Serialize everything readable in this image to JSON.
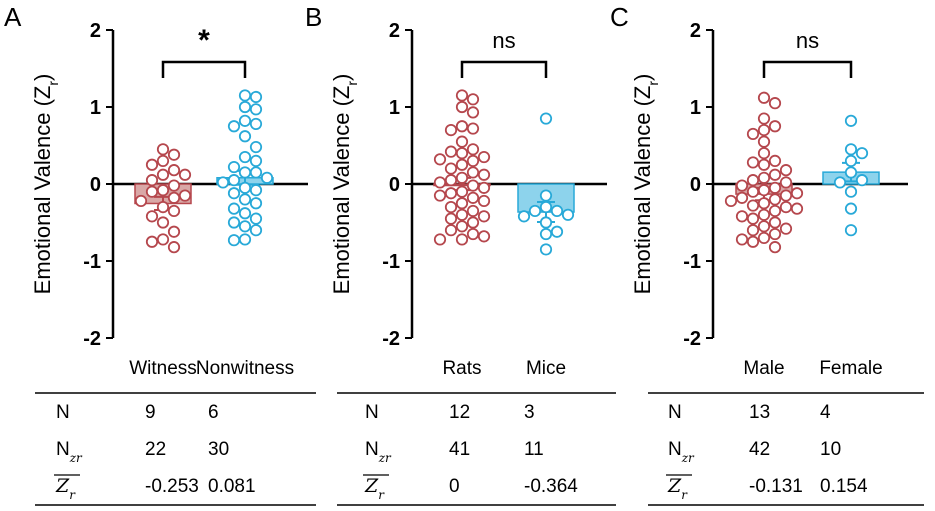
{
  "figure": {
    "panels": [
      "A",
      "B",
      "C"
    ],
    "colors": {
      "red": "#b5474d",
      "redFill": "#d9a8a7",
      "blue": "#28a9d8",
      "blueFill": "#8dd3ec",
      "axis": "#000000"
    }
  },
  "chart_data": [
    {
      "type": "scatter",
      "panel": "A",
      "ylabel": "Emotional Valence (Z",
      "ylabel_sub": "r",
      "ylabel_close": ")",
      "ylim": [
        -2,
        2
      ],
      "yticks": [
        "2",
        "1",
        "0",
        "-1",
        "-2"
      ],
      "categories": [
        "Witness",
        "Nonwitness"
      ],
      "significance": "*",
      "series": [
        {
          "name": "Witness",
          "color": "red",
          "mean": -0.253,
          "sem": 0.085,
          "values": [
            0.45,
            0.38,
            0.3,
            0.25,
            0.18,
            0.12,
            0.12,
            0.05,
            -0.02,
            -0.08,
            -0.1,
            -0.15,
            -0.18,
            -0.22,
            -0.3,
            -0.35,
            -0.42,
            -0.5,
            -0.62,
            -0.72,
            -0.75,
            -0.82
          ]
        },
        {
          "name": "Nonwitness",
          "color": "blue",
          "mean": 0.081,
          "sem": 0.09,
          "values": [
            1.15,
            1.13,
            1.0,
            0.97,
            0.82,
            0.78,
            0.75,
            0.62,
            0.48,
            0.35,
            0.3,
            0.22,
            0.15,
            0.15,
            0.08,
            0.05,
            0.02,
            -0.05,
            -0.08,
            -0.12,
            -0.2,
            -0.25,
            -0.32,
            -0.38,
            -0.45,
            -0.5,
            -0.55,
            -0.6,
            -0.72,
            -0.73
          ]
        }
      ],
      "table": {
        "rows": [
          {
            "label": "N",
            "values": [
              "9",
              "6"
            ]
          },
          {
            "label": "N",
            "label_sub": "zr",
            "values": [
              "22",
              "30"
            ]
          },
          {
            "label": "Z",
            "label_sub": "r",
            "values": [
              "-0.253",
              "0.081"
            ]
          }
        ]
      }
    },
    {
      "type": "scatter",
      "panel": "B",
      "ylabel": "Emotional Valence (Z",
      "ylabel_sub": "r",
      "ylabel_close": ")",
      "ylim": [
        -2,
        2
      ],
      "yticks": [
        "2",
        "1",
        "0",
        "-1",
        "-2"
      ],
      "categories": [
        "Rats",
        "Mice"
      ],
      "significance": "ns",
      "series": [
        {
          "name": "Rats",
          "color": "red",
          "mean": 0.0,
          "sem": 0.08,
          "values": [
            1.15,
            1.1,
            1.0,
            0.93,
            0.75,
            0.72,
            0.7,
            0.55,
            0.45,
            0.42,
            0.4,
            0.35,
            0.32,
            0.3,
            0.25,
            0.2,
            0.15,
            0.12,
            0.08,
            0.05,
            0.02,
            -0.02,
            -0.05,
            -0.1,
            -0.12,
            -0.15,
            -0.18,
            -0.22,
            -0.25,
            -0.3,
            -0.35,
            -0.4,
            -0.42,
            -0.45,
            -0.5,
            -0.55,
            -0.6,
            -0.65,
            -0.68,
            -0.72,
            -0.72
          ]
        },
        {
          "name": "Mice",
          "color": "blue",
          "mean": -0.364,
          "sem": 0.13,
          "values": [
            0.85,
            -0.15,
            -0.3,
            -0.35,
            -0.35,
            -0.4,
            -0.42,
            -0.5,
            -0.62,
            -0.65,
            -0.85
          ]
        }
      ],
      "table": {
        "rows": [
          {
            "label": "N",
            "values": [
              "12",
              "3"
            ]
          },
          {
            "label": "N",
            "label_sub": "zr",
            "values": [
              "41",
              "11"
            ]
          },
          {
            "label": "Z",
            "label_sub": "r",
            "values": [
              "0",
              "-0.364"
            ]
          }
        ]
      }
    },
    {
      "type": "scatter",
      "panel": "C",
      "ylabel": "Emotional Valence (Z",
      "ylabel_sub": "r",
      "ylabel_close": ")",
      "ylim": [
        -2,
        2
      ],
      "yticks": [
        "2",
        "1",
        "0",
        "-1",
        "-2"
      ],
      "categories": [
        "Male",
        "Female"
      ],
      "significance": "ns",
      "series": [
        {
          "name": "Male",
          "color": "red",
          "mean": -0.131,
          "sem": 0.08,
          "values": [
            1.12,
            1.05,
            0.85,
            0.75,
            0.7,
            0.65,
            0.55,
            0.4,
            0.3,
            0.28,
            0.25,
            0.18,
            0.12,
            0.08,
            0.05,
            0.02,
            -0.02,
            -0.05,
            -0.08,
            -0.1,
            -0.12,
            -0.15,
            -0.18,
            -0.2,
            -0.22,
            -0.25,
            -0.28,
            -0.3,
            -0.32,
            -0.35,
            -0.4,
            -0.42,
            -0.45,
            -0.5,
            -0.55,
            -0.58,
            -0.6,
            -0.65,
            -0.7,
            -0.72,
            -0.75,
            -0.82
          ]
        },
        {
          "name": "Female",
          "color": "blue",
          "mean": 0.154,
          "sem": 0.12,
          "values": [
            0.82,
            0.45,
            0.4,
            0.3,
            0.15,
            0.05,
            0.02,
            -0.1,
            -0.32,
            -0.6
          ]
        }
      ],
      "table": {
        "rows": [
          {
            "label": "N",
            "values": [
              "13",
              "4"
            ]
          },
          {
            "label": "N",
            "label_sub": "zr",
            "values": [
              "42",
              "10"
            ]
          },
          {
            "label": "Z",
            "label_sub": "r",
            "values": [
              "-0.131",
              "0.154"
            ]
          }
        ]
      }
    }
  ]
}
